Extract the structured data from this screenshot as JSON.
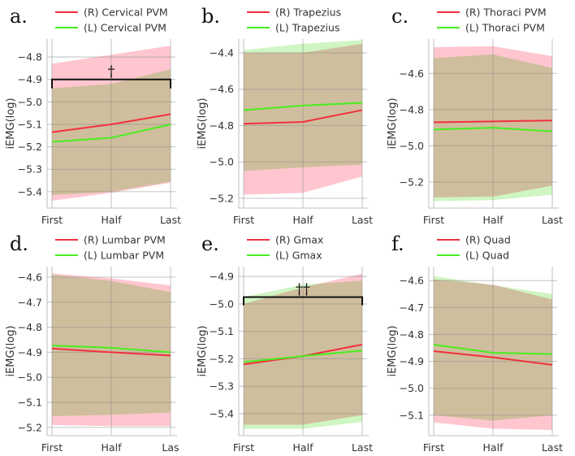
{
  "colors": {
    "right": "#f2303f",
    "left": "#48ee1e",
    "right_band": "#ffc6cf",
    "left_band": "#cff5c2",
    "grid": "#c8c8c8"
  },
  "chart_data": [
    {
      "type": "line",
      "panel_label": "a.",
      "series_names": [
        "(R) Cervical PVM",
        "(L) Cervical PVM"
      ],
      "xlabel": "",
      "ylabel": "iEMG(log)",
      "categories": [
        "First",
        "Half",
        "Last"
      ],
      "ylim": [
        -5.473,
        -4.72
      ],
      "yticks": [
        -4.8,
        -4.9,
        -5.0,
        -5.1,
        -5.2,
        -5.3,
        -5.4
      ],
      "ytick_labels": [
        "−4.8",
        "−4.9",
        "−5.0",
        "−5.1",
        "−5.2",
        "−5.3",
        "−5.4"
      ],
      "series": [
        {
          "name": "(R) Cervical PVM",
          "values": [
            -5.135,
            -5.1,
            -5.055
          ],
          "upper": [
            -4.83,
            -4.79,
            -4.75
          ],
          "lower": [
            -5.44,
            -5.405,
            -5.36
          ]
        },
        {
          "name": "(L) Cervical PVM",
          "values": [
            -5.178,
            -5.16,
            -5.1
          ],
          "upper": [
            -4.94,
            -4.92,
            -4.855
          ],
          "lower": [
            -5.415,
            -5.4,
            -5.355
          ]
        }
      ],
      "significance": {
        "marker": "†",
        "level": -4.9,
        "drop": -4.94,
        "from": "First",
        "to": "Last"
      }
    },
    {
      "type": "line",
      "panel_label": "b.",
      "series_names": [
        "(R) Trapezius",
        "(L) Trapezius"
      ],
      "xlabel": "",
      "ylabel": "iEMG(log)",
      "categories": [
        "First",
        "Half",
        "Last"
      ],
      "ylim": [
        -5.254,
        -4.324
      ],
      "yticks": [
        -4.4,
        -4.6,
        -4.8,
        -5.0,
        -5.2
      ],
      "ytick_labels": [
        "−4.4",
        "−4.6",
        "−4.8",
        "−5.0",
        "−5.2"
      ],
      "series": [
        {
          "name": "(R) Trapezius",
          "values": [
            -4.79,
            -4.78,
            -4.715
          ],
          "upper": [
            -4.4,
            -4.4,
            -4.35
          ],
          "lower": [
            -5.18,
            -5.17,
            -5.08
          ]
        },
        {
          "name": "(L) Trapezius",
          "values": [
            -4.715,
            -4.69,
            -4.675
          ],
          "upper": [
            -4.385,
            -4.35,
            -4.33
          ],
          "lower": [
            -5.05,
            -5.03,
            -5.015
          ]
        }
      ]
    },
    {
      "type": "line",
      "panel_label": "c.",
      "series_names": [
        "(R) Thoraci PVM",
        "(L) Thoraci PVM"
      ],
      "xlabel": "",
      "ylabel": "iEMG(log)",
      "categories": [
        "First",
        "Half",
        "Last"
      ],
      "ylim": [
        -5.344,
        -4.41
      ],
      "yticks": [
        -4.6,
        -4.8,
        -5.0,
        -5.2
      ],
      "ytick_labels": [
        "−4.6",
        "−4.8",
        "−5.0",
        "−5.2"
      ],
      "series": [
        {
          "name": "(R) Thoraci PVM",
          "values": [
            -4.87,
            -4.865,
            -4.86
          ],
          "upper": [
            -4.455,
            -4.45,
            -4.505
          ],
          "lower": [
            -5.285,
            -5.28,
            -5.22
          ]
        },
        {
          "name": "(L) Thoraci PVM",
          "values": [
            -4.91,
            -4.9,
            -4.92
          ],
          "upper": [
            -4.515,
            -4.495,
            -4.57
          ],
          "lower": [
            -5.305,
            -5.3,
            -5.27
          ]
        }
      ]
    },
    {
      "type": "line",
      "panel_label": "d.",
      "series_names": [
        "(R) Lumbar PVM",
        "(L) Lumbar PVM"
      ],
      "xlabel": "",
      "ylabel": "iEMG(log)",
      "categories": [
        "First",
        "Half",
        "Las"
      ],
      "ylim": [
        -5.233,
        -4.558
      ],
      "yticks": [
        -4.6,
        -4.7,
        -4.8,
        -4.9,
        -5.0,
        -5.1,
        -5.2
      ],
      "ytick_labels": [
        "−4.6",
        "−4.7",
        "−4.8",
        "−4.9",
        "−5.0",
        "−5.1",
        "−5.2"
      ],
      "series": [
        {
          "name": "(R) Lumbar PVM",
          "values": [
            -4.885,
            -4.9,
            -4.913
          ],
          "upper": [
            -4.585,
            -4.605,
            -4.633
          ],
          "lower": [
            -5.19,
            -5.195,
            -5.195
          ]
        },
        {
          "name": "(L) Lumbar PVM",
          "values": [
            -4.873,
            -4.882,
            -4.9
          ],
          "upper": [
            -4.59,
            -4.615,
            -4.66
          ],
          "lower": [
            -5.155,
            -5.15,
            -5.14
          ]
        }
      ]
    },
    {
      "type": "line",
      "panel_label": "e.",
      "series_names": [
        "(R) Gmax",
        "(L) Gmax"
      ],
      "xlabel": "",
      "ylabel": "iEMG(log)",
      "categories": [
        "First",
        "Half",
        "Last"
      ],
      "ylim": [
        -5.48,
        -4.864
      ],
      "yticks": [
        -4.9,
        -5.0,
        -5.1,
        -5.2,
        -5.3,
        -5.4
      ],
      "ytick_labels": [
        "−4.9",
        "−5.0",
        "−5.1",
        "−5.2",
        "−5.3",
        "−5.4"
      ],
      "series": [
        {
          "name": "(R) Gmax",
          "values": [
            -5.22,
            -5.19,
            -5.148
          ],
          "upper": [
            -5.0,
            -4.94,
            -4.89
          ],
          "lower": [
            -5.44,
            -5.44,
            -5.405
          ]
        },
        {
          "name": "(L) Gmax",
          "values": [
            -5.212,
            -5.19,
            -5.17
          ],
          "upper": [
            -4.975,
            -4.93,
            -4.915
          ],
          "lower": [
            -5.455,
            -5.455,
            -5.43
          ]
        }
      ],
      "significance": {
        "marker": "††",
        "level": -4.975,
        "drop": -5.005,
        "from": "First",
        "to": "Last"
      }
    },
    {
      "type": "line",
      "panel_label": "f.",
      "series_names": [
        "(R) Quad",
        "(L) Quad"
      ],
      "xlabel": "",
      "ylabel": "iEMG(log)",
      "categories": [
        "First",
        "Half",
        "Last"
      ],
      "ylim": [
        -5.176,
        -4.548
      ],
      "yticks": [
        -4.6,
        -4.7,
        -4.8,
        -4.9,
        -5.0,
        -5.1
      ],
      "ytick_labels": [
        "−4.6",
        "−4.7",
        "−4.8",
        "−4.9",
        "−5.0",
        "−5.1"
      ],
      "series": [
        {
          "name": "(R) Quad",
          "values": [
            -4.862,
            -4.885,
            -4.913
          ],
          "upper": [
            -4.595,
            -4.615,
            -4.67
          ],
          "lower": [
            -5.127,
            -5.15,
            -5.155
          ]
        },
        {
          "name": "(L) Quad",
          "values": [
            -4.838,
            -4.868,
            -4.873
          ],
          "upper": [
            -4.583,
            -4.617,
            -4.65
          ],
          "lower": [
            -5.1,
            -5.12,
            -5.1
          ]
        }
      ]
    }
  ]
}
